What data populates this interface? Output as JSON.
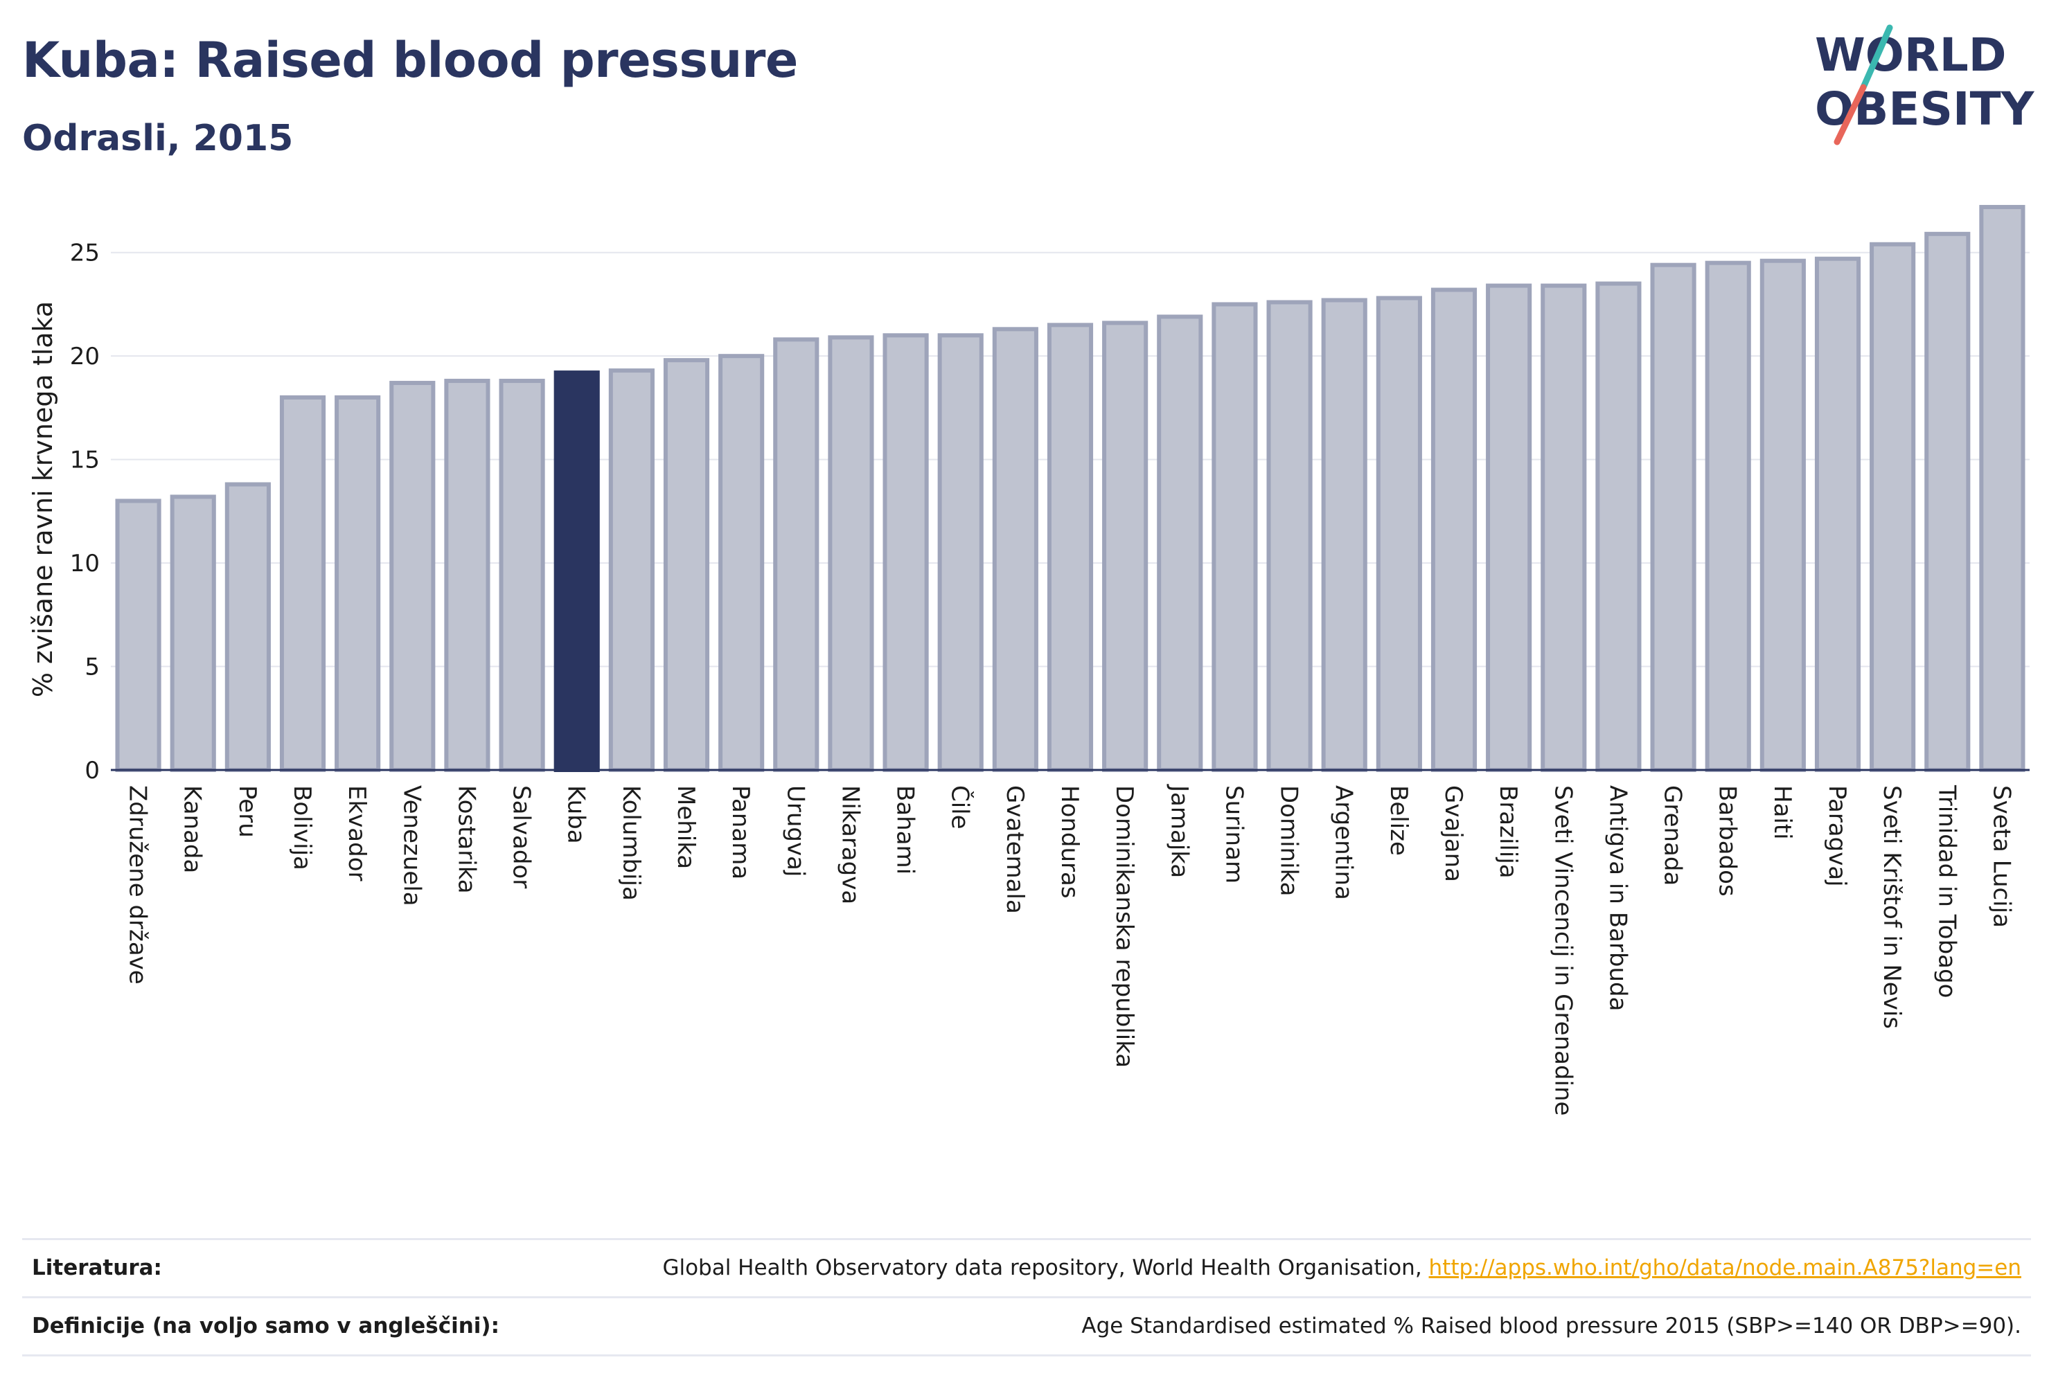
{
  "header": {
    "title": "Kuba: Raised blood pressure",
    "subtitle": "Odrasli, 2015",
    "logo_line1": "WORLD",
    "logo_line2": "OBESITY"
  },
  "colors": {
    "bar": "#bfc3d0",
    "bar_stroke": "#9ea4ba",
    "highlight": "#2a3560",
    "text": "#2a3560",
    "grid": "#e4e6ee",
    "link": "#f0a500",
    "logo_teal": "#3bb8b0",
    "logo_coral": "#e8665a"
  },
  "chart_data": {
    "type": "bar",
    "title": "Kuba: Raised blood pressure",
    "subtitle": "Odrasli, 2015",
    "xlabel": "",
    "ylabel": "% zvišane ravni krvnega tlaka",
    "ylim": [
      0,
      27.5
    ],
    "yticks": [
      0,
      5,
      10,
      15,
      20,
      25
    ],
    "grid": true,
    "highlight": "Kuba",
    "categories": [
      "Združene države",
      "Kanada",
      "Peru",
      "Bolivija",
      "Ekvador",
      "Venezuela",
      "Kostarika",
      "Salvador",
      "Kuba",
      "Kolumbija",
      "Mehika",
      "Panama",
      "Urugvaj",
      "Nikaragva",
      "Bahami",
      "Čile",
      "Gvatemala",
      "Honduras",
      "Dominikanska republika",
      "Jamajka",
      "Surinam",
      "Dominika",
      "Argentina",
      "Belize",
      "Gvajana",
      "Brazilija",
      "Sveti Vincencij in Grenadine",
      "Antigva in Barbuda",
      "Grenada",
      "Barbados",
      "Haiti",
      "Paragvaj",
      "Sveti Krištof in Nevis",
      "Trinidad in Tobago",
      "Sveta Lucija"
    ],
    "values": [
      13.0,
      13.2,
      13.8,
      18.0,
      18.0,
      18.7,
      18.8,
      18.8,
      19.2,
      19.3,
      19.8,
      20.0,
      20.8,
      20.9,
      21.0,
      21.0,
      21.3,
      21.5,
      21.6,
      21.9,
      22.5,
      22.6,
      22.7,
      22.8,
      23.2,
      23.4,
      23.4,
      23.5,
      24.4,
      24.5,
      24.6,
      24.7,
      25.4,
      25.9,
      27.2
    ]
  },
  "footer": {
    "literature_label": "Literatura:",
    "literature_text": "Global Health Observatory data repository, World Health Organisation, ",
    "literature_link": "http://apps.who.int/gho/data/node.main.A875?lang=en",
    "definitions_label": "Definicije (na voljo samo v angleščini):",
    "definitions_text": "Age Standardised estimated % Raised blood pressure 2015 (SBP>=140 OR DBP>=90)."
  }
}
